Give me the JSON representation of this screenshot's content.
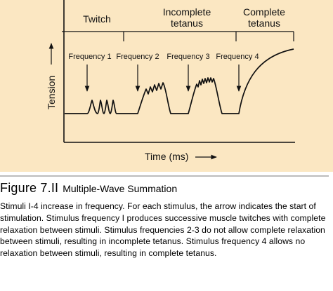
{
  "figure": {
    "colors": {
      "panel_background": "#fbe7c2",
      "line": "#111111",
      "caption_rule": "#7a7a7a"
    },
    "y_axis_label": "Tension",
    "x_axis_label": "Time (ms)",
    "regions": [
      {
        "lines": [
          "Twitch"
        ]
      },
      {
        "lines": [
          "Incomplete",
          "tetanus"
        ]
      },
      {
        "lines": [
          "Complete",
          "tetanus"
        ]
      }
    ],
    "stimuli": [
      {
        "label": "Frequency 1"
      },
      {
        "label": "Frequency 2"
      },
      {
        "label": "Frequency 3"
      },
      {
        "label": "Frequency 4"
      }
    ]
  },
  "caption": {
    "number": "Figure 7.II",
    "title": "Multiple-Wave Summation",
    "body": "Stimuli I-4 increase in frequency. For each stimulus, the arrow indicates the start of stimulation. Stimulus frequency I produces successive muscle twitches with complete relaxation between stimuli. Stimulus frequencies 2-3 do not allow complete relaxation between stimuli, resulting in incomplete tetanus. Stimulus frequency 4 allows no relaxation between stimuli, resulting in complete tetanus."
  }
}
